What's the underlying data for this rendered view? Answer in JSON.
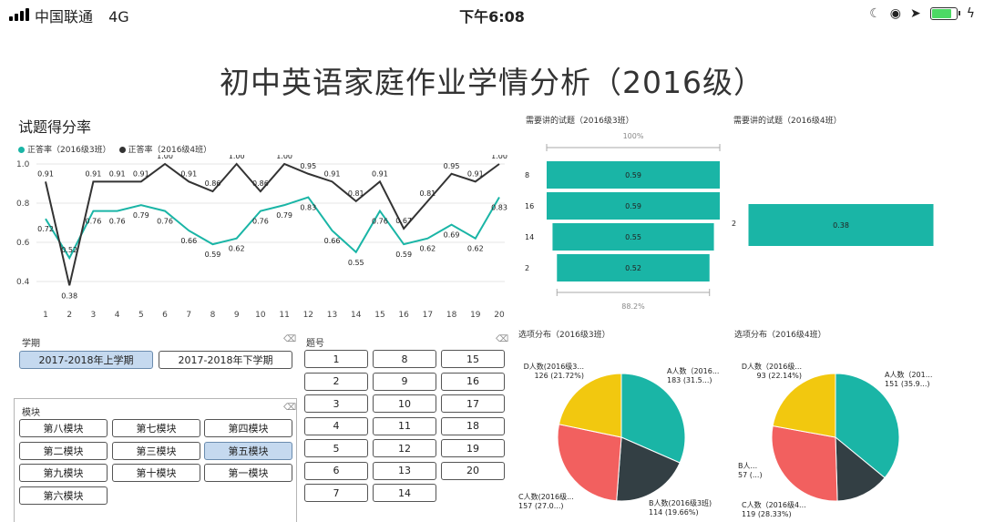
{
  "status_bar": {
    "carrier": "中国联通",
    "network": "4G",
    "time": "下午6:08"
  },
  "report": {
    "title": "初中英语家庭作业学情分析（2016级）"
  },
  "line_chart": {
    "title": "试题得分率",
    "legend": [
      {
        "label": "正答率（2016级3班）",
        "color": "#1ab5a6"
      },
      {
        "label": "正答率（2016级4班）",
        "color": "#333333"
      }
    ]
  },
  "funnel_3": {
    "title": "需要讲的试题（2016级3班）",
    "top_pct": "100%",
    "bottom_pct": "88.2%"
  },
  "funnel_4": {
    "title": "需要讲的试题（2016级4班）"
  },
  "pie_3": {
    "title": "选项分布（2016级3班）",
    "labels": {
      "a1": "A人数（2016...",
      "a2": "183 (31.5...)",
      "b1": "B人数(2016级3班)",
      "b2": "114 (19.66%)",
      "c1": "C人数(2016级...",
      "c2": "157 (27.0...)",
      "d1": "D人数(2016级3...",
      "d2": "126 (21.72%)"
    }
  },
  "pie_4": {
    "title": "选项分布（2016级4班）",
    "labels": {
      "a1": "A人数（201...",
      "a2": "151 (35.9...)",
      "b1": "B人...",
      "b2": "57 (...)",
      "c1": "C人数（2016级4...",
      "c2": "119 (28.33%)",
      "d1": "D人数（2016级...",
      "d2": "93 (22.14%)"
    }
  },
  "term_slicer": {
    "label": "学期",
    "options": [
      {
        "label": "2017-2018年上学期",
        "selected": true
      },
      {
        "label": "2017-2018年下学期",
        "selected": false
      }
    ]
  },
  "question_slicer": {
    "label": "题号",
    "options": [
      "1",
      "8",
      "15",
      "2",
      "9",
      "16",
      "3",
      "10",
      "17",
      "4",
      "11",
      "18",
      "5",
      "12",
      "19",
      "6",
      "13",
      "20",
      "7",
      "14"
    ]
  },
  "module_slicer": {
    "label": "模块",
    "options": [
      {
        "label": "第八模块",
        "selected": false
      },
      {
        "label": "第七模块",
        "selected": false
      },
      {
        "label": "第四模块",
        "selected": false
      },
      {
        "label": "第二模块",
        "selected": false
      },
      {
        "label": "第三模块",
        "selected": false
      },
      {
        "label": "第五模块",
        "selected": true
      },
      {
        "label": "第九模块",
        "selected": false
      },
      {
        "label": "第十模块",
        "selected": false
      },
      {
        "label": "第一模块",
        "selected": false
      },
      {
        "label": "第六模块",
        "selected": false
      }
    ]
  },
  "chart_data": [
    {
      "type": "line",
      "title": "试题得分率",
      "x": [
        1,
        2,
        3,
        4,
        5,
        6,
        7,
        8,
        9,
        10,
        11,
        12,
        13,
        14,
        15,
        16,
        17,
        18,
        19,
        20
      ],
      "ylim": [
        0.4,
        1.0
      ],
      "yticks": [
        "0.4",
        "0.6",
        "0.8",
        "1.0"
      ],
      "grid": true,
      "legend_position": "top-left",
      "series": [
        {
          "name": "正答率（2016级3班）",
          "color": "#1ab5a6",
          "values": [
            0.72,
            0.52,
            0.76,
            0.76,
            0.79,
            0.76,
            0.66,
            0.59,
            0.62,
            0.76,
            0.79,
            0.83,
            0.66,
            0.55,
            0.76,
            0.59,
            0.62,
            0.69,
            0.62,
            0.83
          ],
          "labels": [
            "0.72",
            "0.52",
            "0.76",
            "0.76",
            "0.79",
            "0.76",
            "0.66",
            "0.59",
            "0.62",
            "0.76",
            "0.79",
            "0.83",
            "0.66",
            "0.55",
            "0.76",
            "0.59",
            "0.62",
            "0.69",
            "0.62",
            "0.83"
          ]
        },
        {
          "name": "正答率（2016级4班）",
          "color": "#333333",
          "values": [
            0.91,
            0.38,
            0.91,
            0.91,
            0.91,
            1.0,
            0.91,
            0.86,
            1.0,
            0.86,
            1.0,
            0.95,
            0.91,
            0.81,
            0.91,
            0.67,
            0.81,
            0.95,
            0.91,
            1.0
          ],
          "labels": [
            "0.91",
            "0.38",
            "0.91",
            "0.91",
            "0.91",
            "1.00",
            "0.91",
            "0.86",
            "1.00",
            "0.86",
            "1.00",
            "0.95",
            "0.91",
            "0.81",
            "0.91",
            "0.67",
            "0.81",
            "0.95",
            "0.91",
            "1.00"
          ]
        }
      ]
    },
    {
      "type": "bar",
      "title": "需要讲的试题（2016级3班）",
      "categories": [
        "8",
        "16",
        "14",
        "2"
      ],
      "values": [
        0.59,
        0.59,
        0.55,
        0.52
      ],
      "labels": [
        "0.59",
        "0.59",
        "0.55",
        "0.52"
      ],
      "color": "#1ab5a6"
    },
    {
      "type": "bar",
      "title": "需要讲的试题（2016级4班）",
      "categories": [
        "2"
      ],
      "values": [
        0.38
      ],
      "labels": [
        "0.38"
      ],
      "color": "#1ab5a6"
    },
    {
      "type": "pie",
      "title": "选项分布（2016级3班）",
      "categories": [
        "A",
        "B",
        "C",
        "D"
      ],
      "values": [
        183,
        114,
        157,
        126
      ],
      "colors": [
        "#1ab5a6",
        "#333f44",
        "#f2605f",
        "#f2c80f"
      ]
    },
    {
      "type": "pie",
      "title": "选项分布（2016级4班）",
      "categories": [
        "A",
        "B",
        "C",
        "D"
      ],
      "values": [
        151,
        57,
        119,
        93
      ],
      "colors": [
        "#1ab5a6",
        "#333f44",
        "#f2605f",
        "#f2c80f"
      ]
    }
  ]
}
